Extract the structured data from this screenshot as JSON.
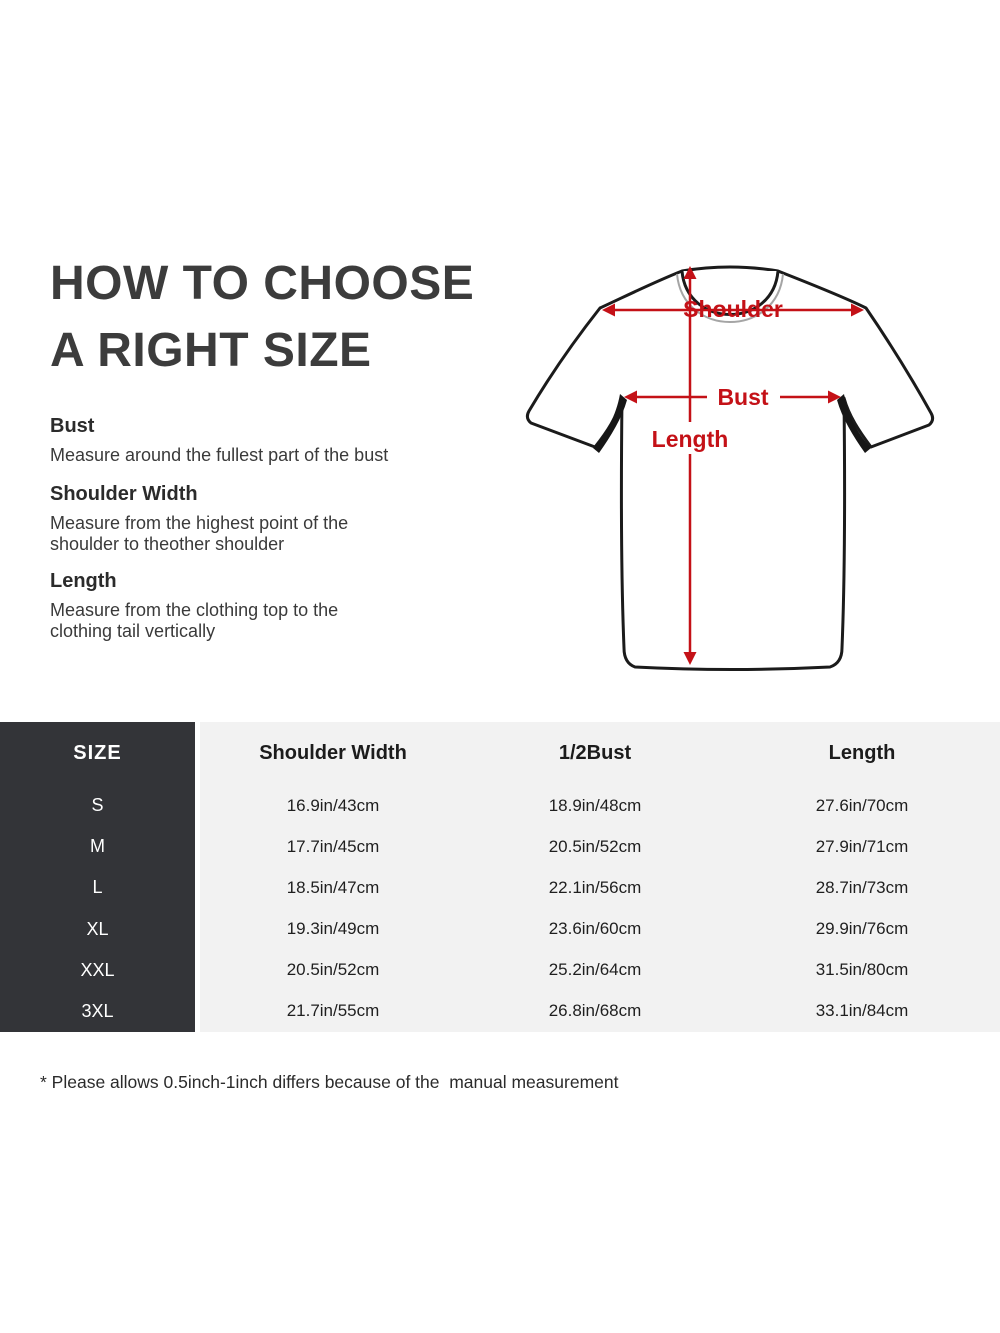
{
  "page": {
    "title_line1": "HOW TO CHOOSE",
    "title_line2": "A RIGHT SIZE"
  },
  "guide": {
    "sections": [
      {
        "heading": "Bust",
        "description": "Measure around the fullest part of the bust"
      },
      {
        "heading": "Shoulder Width",
        "description": "Measure from the highest point of the\nshoulder to theother shoulder"
      },
      {
        "heading": "Length",
        "description": "Measure from the clothing top to the\nclothing tail vertically"
      }
    ]
  },
  "diagram": {
    "labels": {
      "shoulder": "Shoulder",
      "bust": "Bust",
      "length": "Length"
    },
    "colors": {
      "arrow_red": "#c41117",
      "shirt_outline": "#1b1b1b",
      "collar_gray": "#a5a5a5"
    }
  },
  "size_table": {
    "header": {
      "size": "SIZE",
      "columns": [
        "Shoulder Width",
        "1/2Bust",
        "Length"
      ]
    },
    "rows": [
      {
        "size": "S",
        "shoulder_width": "16.9in/43cm",
        "half_bust": "18.9in/48cm",
        "length": "27.6in/70cm"
      },
      {
        "size": "M",
        "shoulder_width": "17.7in/45cm",
        "half_bust": "20.5in/52cm",
        "length": "27.9in/71cm"
      },
      {
        "size": "L",
        "shoulder_width": "18.5in/47cm",
        "half_bust": "22.1in/56cm",
        "length": "28.7in/73cm"
      },
      {
        "size": "XL",
        "shoulder_width": "19.3in/49cm",
        "half_bust": "23.6in/60cm",
        "length": "29.9in/76cm"
      },
      {
        "size": "XXL",
        "shoulder_width": "20.5in/52cm",
        "half_bust": "25.2in/64cm",
        "length": "31.5in/80cm"
      },
      {
        "size": "3XL",
        "shoulder_width": "21.7in/55cm",
        "half_bust": "26.8in/68cm",
        "length": "33.1in/84cm"
      }
    ],
    "colors": {
      "dark_column_bg": "#333438",
      "light_bg": "#f2f2f2"
    }
  },
  "footnote": "* Please allows 0.5inch-1inch differs because of the  manual measurement"
}
